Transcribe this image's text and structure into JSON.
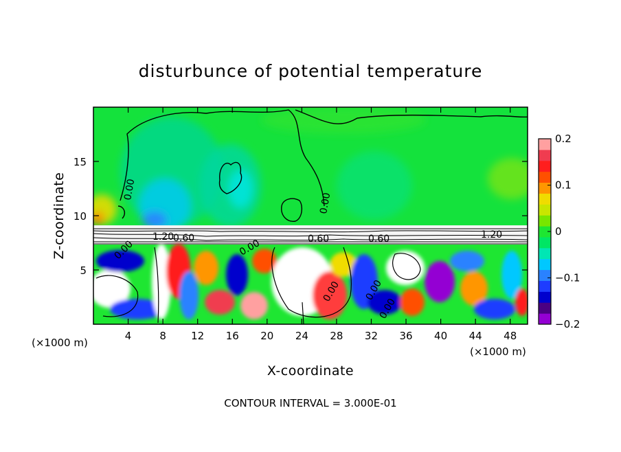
{
  "chart_data": {
    "type": "heatmap",
    "title": "disturbunce of potential temperature",
    "xlabel": "X-coordinate",
    "ylabel": "Z-coordinate",
    "x_unit_label": "(×1000 m)",
    "xlim": [
      0,
      50
    ],
    "ylim": [
      0,
      20
    ],
    "x_ticks": [
      4,
      8,
      12,
      16,
      20,
      24,
      28,
      32,
      36,
      40,
      44,
      48
    ],
    "y_ticks": [
      5,
      10,
      15
    ],
    "colorbar": {
      "range": [
        -0.2,
        0.2
      ],
      "tick_values": [
        0.2,
        0.1,
        0,
        -0.1,
        -0.2
      ],
      "tick_labels": [
        "0.2",
        "0.1",
        "0",
        "−0.1",
        "−0.2"
      ],
      "colors": [
        "#9400d3",
        "#4b0082",
        "#0000cd",
        "#1e3cff",
        "#2a82ff",
        "#00c8ff",
        "#00e6b4",
        "#00e664",
        "#1ee632",
        "#78e600",
        "#c8e600",
        "#f0dc00",
        "#ff9600",
        "#ff5000",
        "#ff1e1e",
        "#f03c50",
        "#ffa0a0"
      ]
    },
    "contour_labels": [
      "0.00",
      "0.00",
      "0.00",
      "0.00",
      "0.00",
      "0.00",
      "0.00",
      "1.20",
      "1.20",
      "0.60",
      "0.60",
      "0.60"
    ],
    "contour_interval_text": "CONTOUR INTERVAL = 3.000E-01"
  }
}
